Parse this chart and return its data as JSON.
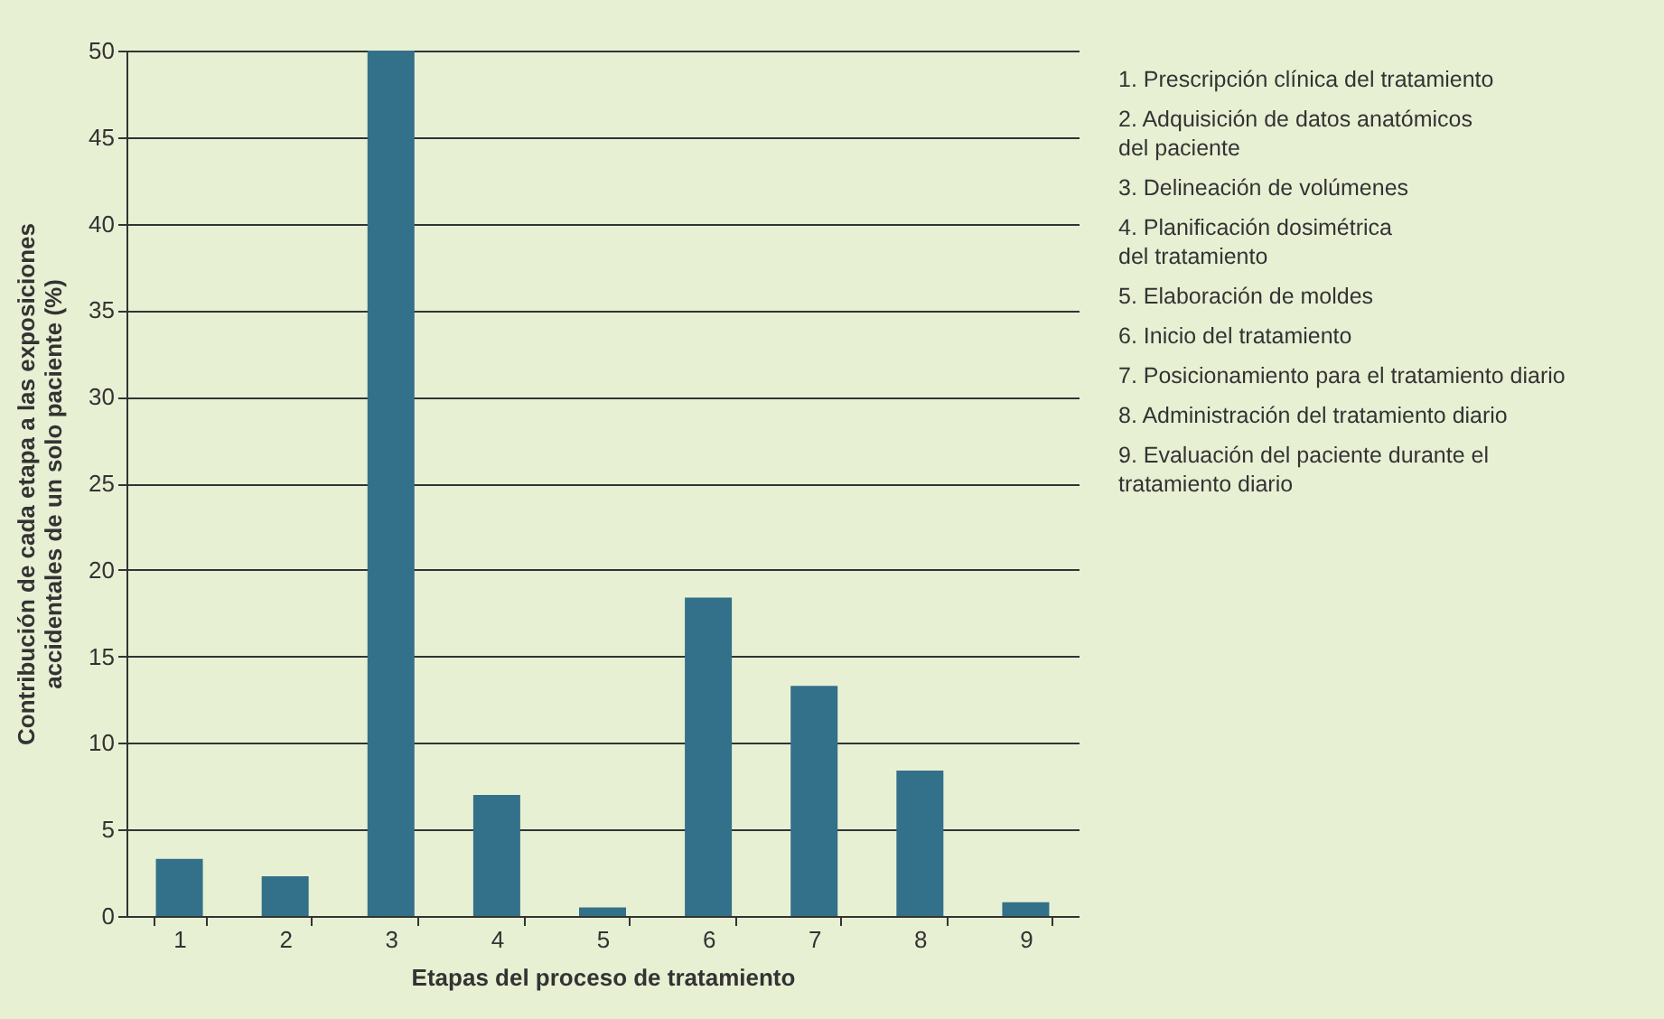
{
  "chart_data": {
    "type": "bar",
    "xlabel": "Etapas del proceso de tratamiento",
    "ylabel": "Contribución de cada etapa a las exposiciones\naccidentales de un solo paciente (%)",
    "categories": [
      "1",
      "2",
      "3",
      "4",
      "5",
      "6",
      "7",
      "8",
      "9"
    ],
    "values": [
      3.3,
      2.3,
      50,
      7.0,
      0.5,
      18.4,
      13.3,
      8.4,
      0.8
    ],
    "color": "#337089",
    "ylim": [
      0,
      50
    ],
    "yticks": [
      0,
      5,
      10,
      15,
      20,
      25,
      30,
      35,
      40,
      45,
      50
    ],
    "grid": "y",
    "annotations": [
      "1. Prescripción clínica del tratamiento",
      "2. Adquisición de datos anatómicos\ndel paciente",
      "3. Delineación de volúmenes",
      "4. Planificación dosimétrica\ndel tratamiento",
      "5. Elaboración de moldes",
      "6. Inicio del tratamiento",
      "7. Posicionamiento para el tratamiento diario",
      "8. Administración del tratamiento diario",
      "9. Evaluación del paciente durante el\ntratamiento diario"
    ]
  }
}
